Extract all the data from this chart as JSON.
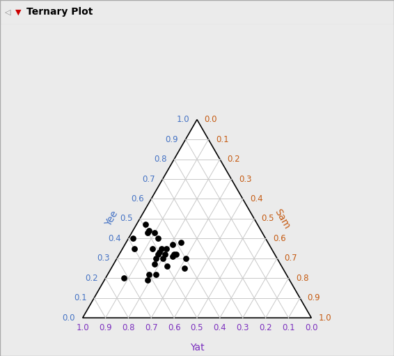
{
  "title": "Ternary Plot",
  "axis_label_yat": "Yat",
  "axis_label_yee": "Yee",
  "axis_label_sam": "Sam",
  "bg_color": "#ebebeb",
  "triangle_bg": "#ffffff",
  "grid_color": "#c8c8c8",
  "border_color": "#000000",
  "point_color": "#000000",
  "point_size": 28,
  "color_yat": "#7b2fbe",
  "color_yee": "#4472c4",
  "color_sam": "#c55a11",
  "title_bar_bg": "#e8e8e8",
  "tick_values": [
    0.0,
    0.1,
    0.2,
    0.3,
    0.4,
    0.5,
    0.6,
    0.7,
    0.8,
    0.9,
    1.0
  ],
  "points_yat_yee_sam": [
    [
      0.6,
      0.35,
      0.05
    ],
    [
      0.58,
      0.4,
      0.02
    ],
    [
      0.57,
      0.22,
      0.21
    ],
    [
      0.6,
      0.22,
      0.18
    ],
    [
      0.62,
      0.19,
      0.19
    ],
    [
      0.55,
      0.27,
      0.18
    ],
    [
      0.53,
      0.3,
      0.17
    ],
    [
      0.52,
      0.35,
      0.13
    ],
    [
      0.51,
      0.32,
      0.17
    ],
    [
      0.5,
      0.43,
      0.07
    ],
    [
      0.5,
      0.33,
      0.17
    ],
    [
      0.5,
      0.3,
      0.2
    ],
    [
      0.5,
      0.26,
      0.24
    ],
    [
      0.49,
      0.47,
      0.04
    ],
    [
      0.49,
      0.44,
      0.07
    ],
    [
      0.48,
      0.35,
      0.17
    ],
    [
      0.48,
      0.32,
      0.2
    ],
    [
      0.47,
      0.43,
      0.1
    ],
    [
      0.47,
      0.4,
      0.13
    ],
    [
      0.46,
      0.35,
      0.19
    ],
    [
      0.45,
      0.31,
      0.24
    ],
    [
      0.44,
      0.32,
      0.24
    ],
    [
      0.43,
      0.32,
      0.25
    ],
    [
      0.43,
      0.25,
      0.32
    ],
    [
      0.42,
      0.37,
      0.21
    ],
    [
      0.4,
      0.3,
      0.3
    ],
    [
      0.38,
      0.38,
      0.24
    ],
    [
      0.72,
      0.2,
      0.08
    ]
  ]
}
